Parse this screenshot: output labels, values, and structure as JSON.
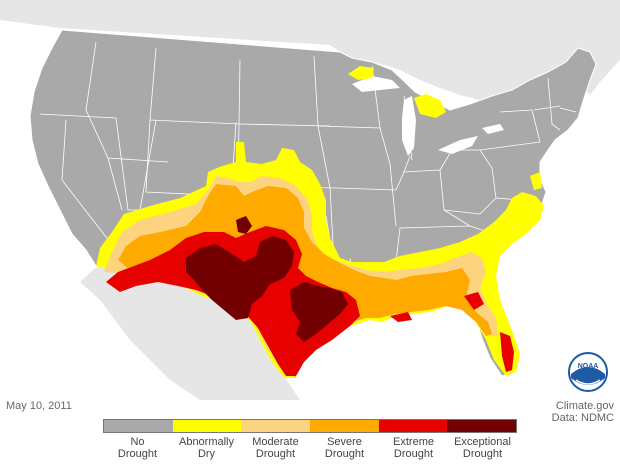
{
  "map": {
    "date": "May 10, 2011",
    "source": "Climate.gov",
    "data_source": "Data: NDMC",
    "logo_text": "NOAA",
    "colors": {
      "ocean": "#ffffff",
      "neighbors": "#e6e6e6",
      "land": "#a9a9a9",
      "border": "#ffffff",
      "d0": "#ffff00",
      "d1": "#fcd37f",
      "d2": "#ffaa00",
      "d3": "#e60000",
      "d4": "#730000"
    }
  },
  "legend": [
    {
      "line1": "No",
      "line2": "Drought",
      "color": "#a9a9a9"
    },
    {
      "line1": "Abnormally",
      "line2": "Dry",
      "color": "#ffff00"
    },
    {
      "line1": "Moderate",
      "line2": "Drought",
      "color": "#fcd37f"
    },
    {
      "line1": "Severe",
      "line2": "Drought",
      "color": "#ffaa00"
    },
    {
      "line1": "Extreme",
      "line2": "Drought",
      "color": "#e60000"
    },
    {
      "line1": "Exceptional",
      "line2": "Drought",
      "color": "#730000"
    }
  ]
}
